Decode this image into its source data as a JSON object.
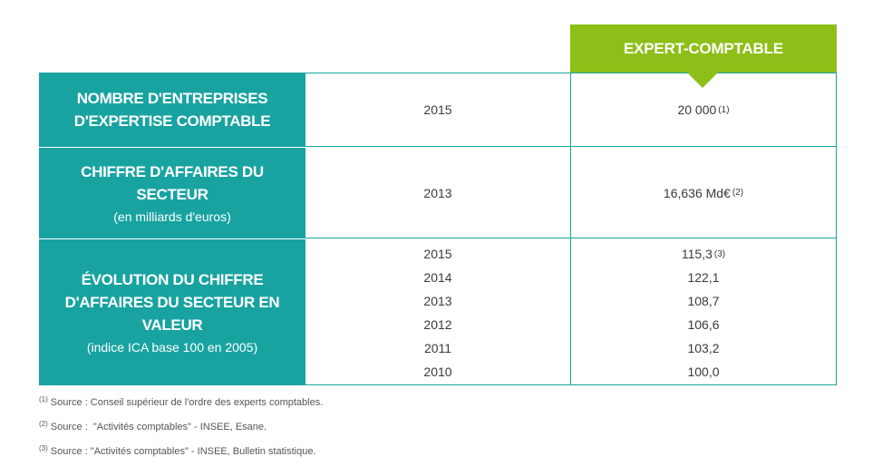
{
  "column_header": "EXPERT-COMPTABLE",
  "rows": [
    {
      "title": "NOMBRE D'ENTREPRISES D'EXPERTISE COMPTABLE",
      "subtitle": "",
      "entries": [
        {
          "year": "2015",
          "value": "20 000",
          "note": "(1)"
        }
      ]
    },
    {
      "title": "CHIFFRE D'AFFAIRES DU SECTEUR",
      "subtitle": "(en milliards d'euros)",
      "entries": [
        {
          "year": "2013",
          "value": "16,636 Md€",
          "note": "(2)"
        }
      ]
    },
    {
      "title": "ÉVOLUTION DU CHIFFRE D'AFFAIRES DU SECTEUR EN VALEUR",
      "subtitle": "(indice ICA base 100 en 2005)",
      "entries": [
        {
          "year": "2015",
          "value": "115,3",
          "note": "(3)"
        },
        {
          "year": "2014",
          "value": "122,1",
          "note": ""
        },
        {
          "year": "2013",
          "value": "108,7",
          "note": ""
        },
        {
          "year": "2012",
          "value": "106,6",
          "note": ""
        },
        {
          "year": "2011",
          "value": "103,2",
          "note": ""
        },
        {
          "year": "2010",
          "value": "100,0",
          "note": ""
        }
      ]
    }
  ],
  "footnotes": [
    {
      "mark": "(1)",
      "text": "Source : Conseil supérieur de l'ordre des experts comptables."
    },
    {
      "mark": "(2)",
      "text": "Source :  \"Activités comptables\" - INSEE, Esane."
    },
    {
      "mark": "(3)",
      "text": "Source : \"Activités comptables\" - INSEE, Bulletin statistique."
    }
  ],
  "colors": {
    "header_green": "#8dbf18",
    "teal": "#18a3a1",
    "text": "#3a3a3a"
  }
}
